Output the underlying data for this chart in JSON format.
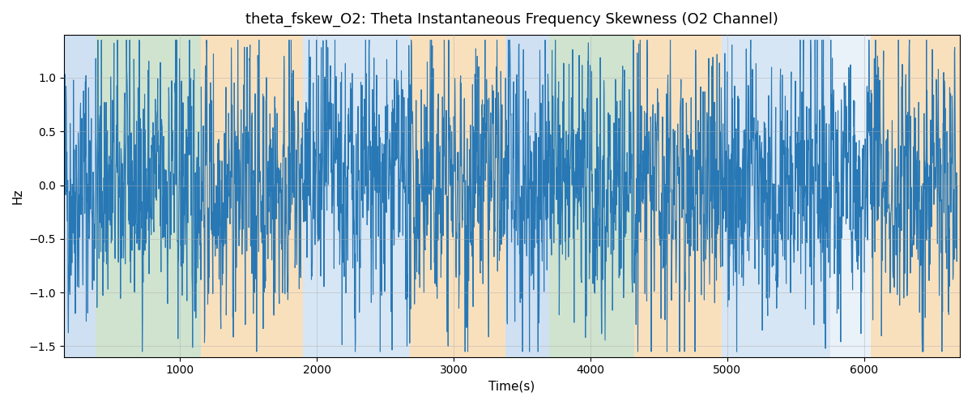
{
  "title": "theta_fskew_O2: Theta Instantaneous Frequency Skewness (O2 Channel)",
  "xlabel": "Time(s)",
  "ylabel": "Hz",
  "ylim": [
    -1.6,
    1.4
  ],
  "xlim": [
    150,
    6700
  ],
  "line_color": "#2878b5",
  "line_width": 0.8,
  "background_bands": [
    {
      "xmin": 150,
      "xmax": 380,
      "color": "#a8c8e8",
      "alpha": 0.55
    },
    {
      "xmin": 380,
      "xmax": 1150,
      "color": "#a0c8a0",
      "alpha": 0.5
    },
    {
      "xmin": 1150,
      "xmax": 1900,
      "color": "#f5c888",
      "alpha": 0.55
    },
    {
      "xmin": 1900,
      "xmax": 2680,
      "color": "#a8c8e8",
      "alpha": 0.45
    },
    {
      "xmin": 2680,
      "xmax": 3380,
      "color": "#f5c888",
      "alpha": 0.55
    },
    {
      "xmin": 3380,
      "xmax": 3700,
      "color": "#a8c8e8",
      "alpha": 0.55
    },
    {
      "xmin": 3700,
      "xmax": 4320,
      "color": "#a0c8a0",
      "alpha": 0.5
    },
    {
      "xmin": 4320,
      "xmax": 4960,
      "color": "#f5c888",
      "alpha": 0.55
    },
    {
      "xmin": 4960,
      "xmax": 5750,
      "color": "#a8c8e8",
      "alpha": 0.45
    },
    {
      "xmin": 5750,
      "xmax": 6050,
      "color": "#a8c8e8",
      "alpha": 0.25
    },
    {
      "xmin": 6050,
      "xmax": 6700,
      "color": "#f5c888",
      "alpha": 0.55
    }
  ],
  "xticks": [
    1000,
    2000,
    3000,
    4000,
    5000,
    6000
  ],
  "yticks": [
    -1.5,
    -1.0,
    -0.5,
    0.0,
    0.5,
    1.0
  ],
  "grid_color": "#aaaaaa",
  "grid_alpha": 0.5,
  "seed": 42,
  "t_start": 150,
  "t_end": 6680,
  "n_points": 3000
}
